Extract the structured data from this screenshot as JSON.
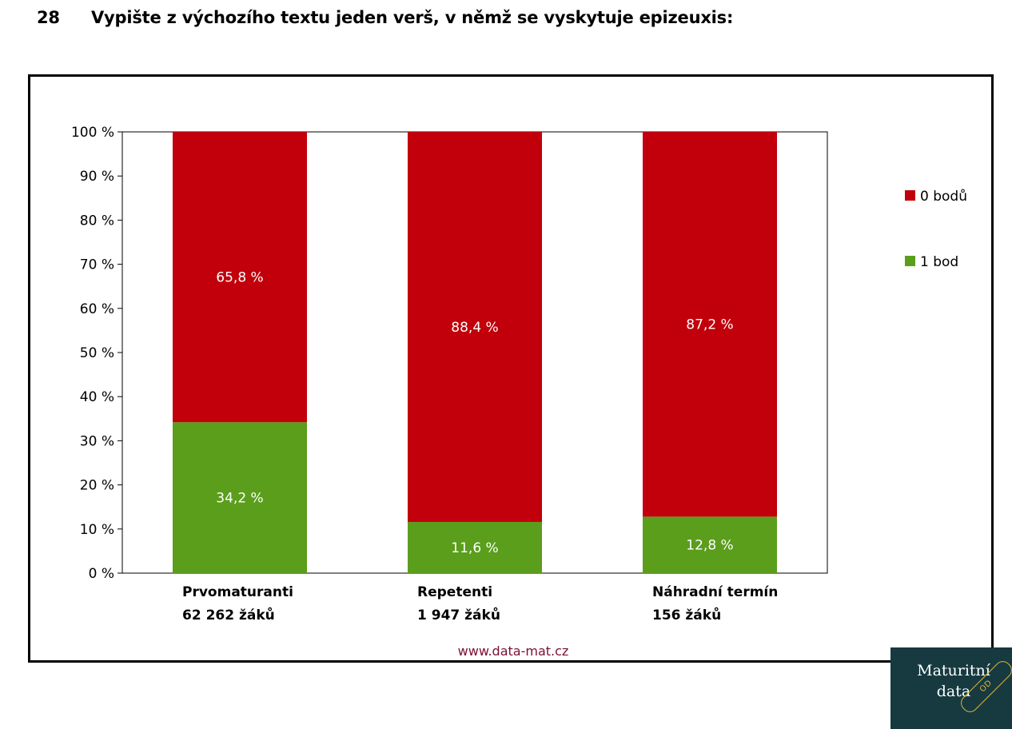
{
  "question": {
    "number": "28",
    "text": "Vypište z výchozího textu jeden verš, v němž se vyskytuje epizeuxis:"
  },
  "chart_data": {
    "type": "bar",
    "stacked": true,
    "categories": [
      {
        "name": "Prvomaturanti",
        "count": "62 262 žáků"
      },
      {
        "name": "Repetenti",
        "count": "1 947 žáků"
      },
      {
        "name": "Náhradní termín",
        "count": "156 žáků"
      }
    ],
    "series": [
      {
        "name": "1 bod",
        "color": "#5a9e1c",
        "values": [
          34.2,
          11.6,
          12.8
        ],
        "labels": [
          "34,2 %",
          "11,6 %",
          "12,8 %"
        ]
      },
      {
        "name": "0 bodů",
        "color": "#c1000b",
        "values": [
          65.8,
          88.4,
          87.2
        ],
        "labels": [
          "65,8 %",
          "88,4 %",
          "87,2 %"
        ]
      }
    ],
    "legend": [
      {
        "name": "0 bodů",
        "color": "#c1000b"
      },
      {
        "name": "1 bod",
        "color": "#5a9e1c"
      }
    ],
    "legend_position": "right",
    "ylim": [
      0,
      100
    ],
    "yticks": [
      "0 %",
      "10 %",
      "20 %",
      "30 %",
      "40 %",
      "50 %",
      "60 %",
      "70 %",
      "80 %",
      "90 %",
      "100 %"
    ],
    "grid": false
  },
  "footer": {
    "url": "www.data-mat.cz"
  },
  "logo": {
    "line1": "Maturitní",
    "line2": "data",
    "stamp": "OD"
  }
}
